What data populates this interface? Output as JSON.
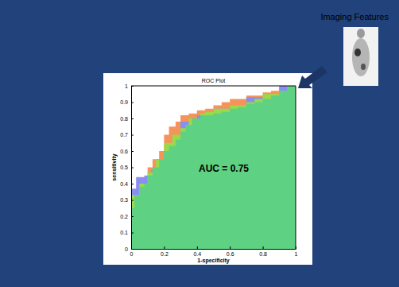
{
  "chart_data": {
    "type": "area",
    "title": "ROC Plot",
    "x_label": "1-specificity",
    "y_label": "sensitivity",
    "annotation": "AUC = 0.75",
    "line_style": "step",
    "xlim": [
      0,
      1
    ],
    "ylim": [
      0,
      1
    ],
    "xticks": [
      0,
      0.2,
      0.4,
      0.6,
      0.8,
      1
    ],
    "yticks": [
      0,
      0.1,
      0.2,
      0.3,
      0.4,
      0.5,
      0.6,
      0.7,
      0.8,
      0.9,
      1
    ],
    "series": [
      {
        "color": "#f4935a",
        "x": [
          0,
          0.05,
          0.1,
          0.13,
          0.17,
          0.2,
          0.23,
          0.27,
          0.3,
          0.35,
          0.4,
          0.45,
          0.5,
          0.55,
          0.6,
          0.7,
          0.8,
          0.85,
          0.9,
          0.95,
          1
        ],
        "values": [
          0.2,
          0.33,
          0.4,
          0.5,
          0.55,
          0.6,
          0.7,
          0.75,
          0.78,
          0.82,
          0.83,
          0.85,
          0.86,
          0.88,
          0.9,
          0.92,
          0.94,
          0.96,
          0.97,
          0.99,
          1
        ]
      },
      {
        "color": "#8a8ef0",
        "x": [
          0,
          0.03,
          0.08,
          0.12,
          0.15,
          0.2,
          0.25,
          0.3,
          0.4,
          0.5,
          0.7,
          0.9,
          1
        ],
        "values": [
          0.25,
          0.37,
          0.44,
          0.45,
          0.48,
          0.55,
          0.6,
          0.65,
          0.78,
          0.82,
          0.86,
          0.93,
          1
        ]
      },
      {
        "color": "#9ad94a",
        "x": [
          0,
          0.05,
          0.1,
          0.15,
          0.2,
          0.25,
          0.3,
          0.35,
          0.42,
          0.45,
          0.5,
          0.6,
          0.7,
          0.75,
          0.8,
          0.9,
          0.95,
          1
        ],
        "values": [
          0.17,
          0.33,
          0.4,
          0.47,
          0.55,
          0.65,
          0.7,
          0.74,
          0.8,
          0.83,
          0.84,
          0.86,
          0.88,
          0.9,
          0.92,
          0.95,
          0.97,
          1
        ]
      },
      {
        "color": "#5fd182",
        "x": [
          0,
          0.02,
          0.05,
          0.08,
          0.1,
          0.13,
          0.17,
          0.2,
          0.23,
          0.27,
          0.3,
          0.33,
          0.37,
          0.42,
          0.5,
          0.55,
          0.6,
          0.65,
          0.7,
          0.75,
          0.8,
          0.85,
          0.9,
          0.95,
          1
        ],
        "values": [
          0.17,
          0.25,
          0.33,
          0.38,
          0.4,
          0.45,
          0.5,
          0.55,
          0.6,
          0.63,
          0.67,
          0.72,
          0.76,
          0.8,
          0.82,
          0.83,
          0.84,
          0.86,
          0.87,
          0.89,
          0.9,
          0.92,
          0.94,
          0.97,
          1
        ]
      }
    ]
  },
  "slide": {
    "image_label": "Imaging Features"
  }
}
